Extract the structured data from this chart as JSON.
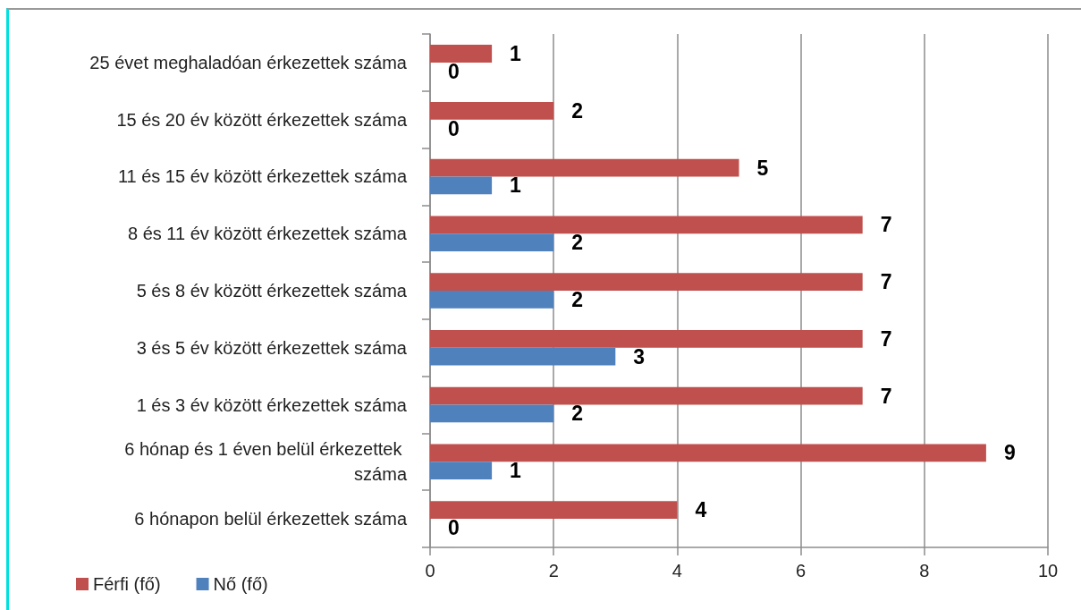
{
  "chart_data": {
    "type": "bar",
    "orientation": "horizontal",
    "categories": [
      "25 évet meghaladóan érkezettek száma",
      "15 és 20 év között érkezettek száma",
      "11 és 15 év között érkezettek száma",
      "8 és 11 év között érkezettek száma",
      "5 és 8 év között érkezettek száma",
      "3 és 5 év között érkezettek száma",
      "1 és 3 év között érkezettek száma",
      "6 hónap és 1 éven belül érkezettek száma",
      "6 hónapon belül érkezettek száma"
    ],
    "series": [
      {
        "name": "Férfi (fő)",
        "color": "#c0504d",
        "values": [
          1,
          2,
          5,
          7,
          7,
          7,
          7,
          9,
          4
        ]
      },
      {
        "name": "Nő (fő)",
        "color": "#4f81bd",
        "values": [
          0,
          0,
          1,
          2,
          2,
          3,
          2,
          1,
          0
        ]
      }
    ],
    "xlim": [
      0,
      10
    ],
    "xticks": [
      0,
      2,
      4,
      6,
      8,
      10
    ],
    "grid": "x",
    "legend": "bottom left",
    "data_labels": true
  }
}
